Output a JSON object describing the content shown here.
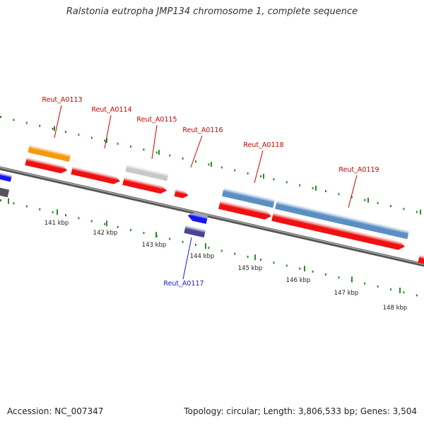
{
  "header": {
    "title": "Ralstonia eutropha JMP134 chromosome 1, complete sequence"
  },
  "footer": {
    "accession": "Accession: NC_007347",
    "summary": "Topology: circular; Length: 3,806,533 bp; Genes: 3,504"
  },
  "scale": {
    "unit": "kbp",
    "ticks": [
      "141 kbp",
      "142 kbp",
      "143 kbp",
      "144 kbp",
      "145 kbp",
      "146 kbp",
      "147 kbp",
      "148 kbp"
    ]
  },
  "colors": {
    "cds": "#ee1111",
    "orange": "#f59a10",
    "gray": "#c8c8c8",
    "steelblue": "#5b8fc4",
    "blue": "#1616ee",
    "slate": "#4a4496",
    "backbone": "#777777",
    "tick": "#2a8a2a",
    "label_red": "#cc0000",
    "label_blue": "#1a1acc"
  },
  "gene_labels": [
    {
      "name": "Reut_A0113",
      "color": "label_red"
    },
    {
      "name": "Reut_A0114",
      "color": "label_red"
    },
    {
      "name": "Reut_A0115",
      "color": "label_red"
    },
    {
      "name": "Reut_A0116",
      "color": "label_red"
    },
    {
      "name": "Reut_A0118",
      "color": "label_red"
    },
    {
      "name": "Reut_A0119",
      "color": "label_red"
    },
    {
      "name": "Reut_A0117",
      "color": "label_blue"
    }
  ]
}
